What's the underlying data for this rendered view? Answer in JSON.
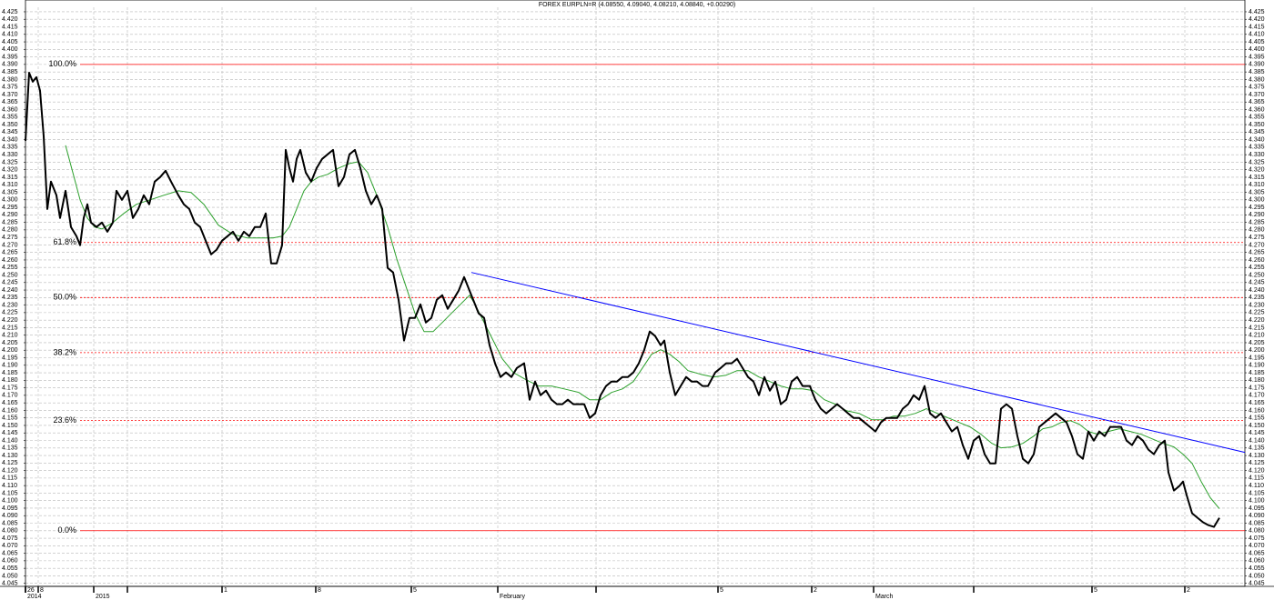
{
  "chart_data": {
    "type": "line",
    "title": "FOREX EURPLN=R (4.08550, 4.09040, 4.08210, 4.08840, +0.00290)",
    "xlim": [
      0,
      1340
    ],
    "ylim": [
      4.043,
      4.428
    ],
    "yticks": [
      4.045,
      {
        "value": 4.05,
        "label": "4.050"
      },
      4.055,
      {
        "value": 4.06,
        "label": "4.060"
      },
      4.065,
      {
        "value": 4.07,
        "label": "4.070"
      },
      4.075,
      {
        "value": 4.08,
        "label": "4.080"
      },
      4.085,
      {
        "value": 4.09,
        "label": "4.090"
      },
      4.095,
      {
        "value": 4.1,
        "label": "4.100"
      },
      4.105,
      {
        "value": 4.11,
        "label": "4.110"
      },
      4.115,
      {
        "value": 4.12,
        "label": "4.120"
      },
      4.125,
      {
        "value": 4.13,
        "label": "4.130"
      },
      4.135,
      {
        "value": 4.14,
        "label": "4.140"
      },
      4.145,
      {
        "value": 4.15,
        "label": "4.150"
      },
      4.155,
      {
        "value": 4.16,
        "label": "4.160"
      },
      4.165,
      {
        "value": 4.17,
        "label": "4.170"
      },
      4.175,
      {
        "value": 4.18,
        "label": "4.180"
      },
      4.185,
      {
        "value": 4.19,
        "label": "4.190"
      },
      4.195,
      {
        "value": 4.2,
        "label": "4.200"
      },
      4.205,
      {
        "value": 4.21,
        "label": "4.210"
      },
      4.215,
      {
        "value": 4.22,
        "label": "4.220"
      },
      4.225,
      {
        "value": 4.23,
        "label": "4.230"
      },
      4.235,
      {
        "value": 4.24,
        "label": "4.240"
      },
      4.245,
      {
        "value": 4.25,
        "label": "4.250"
      },
      4.255,
      {
        "value": 4.26,
        "label": "4.260"
      },
      4.265,
      {
        "value": 4.27,
        "label": "4.270"
      },
      4.275,
      {
        "value": 4.28,
        "label": "4.280"
      },
      4.285,
      {
        "value": 4.29,
        "label": "4.290"
      },
      4.295,
      {
        "value": 4.3,
        "label": "4.300"
      },
      4.305,
      {
        "value": 4.31,
        "label": "4.310"
      },
      4.315,
      {
        "value": 4.32,
        "label": "4.320"
      },
      4.325,
      {
        "value": 4.33,
        "label": "4.330"
      },
      4.335,
      {
        "value": 4.34,
        "label": "4.340"
      },
      4.345,
      {
        "value": 4.35,
        "label": "4.350"
      },
      4.355,
      {
        "value": 4.36,
        "label": "4.360"
      },
      4.365,
      {
        "value": 4.37,
        "label": "4.370"
      },
      4.375,
      {
        "value": 4.38,
        "label": "4.380"
      },
      4.385,
      {
        "value": 4.39,
        "label": "4.390"
      },
      4.395,
      {
        "value": 4.4,
        "label": "4.400"
      },
      4.405,
      {
        "value": 4.41,
        "label": "4.410"
      },
      4.415,
      {
        "value": 4.42,
        "label": "4.420"
      },
      4.425
    ],
    "xticks": [
      {
        "value": 0,
        "label": "26"
      },
      {
        "value": 14,
        "label": "8"
      },
      {
        "value": 216,
        "label": "1"
      },
      {
        "value": 319,
        "label": "8"
      },
      {
        "value": 424,
        "label": "5"
      },
      {
        "value": 761,
        "label": "5"
      },
      {
        "value": 864,
        "label": "2"
      },
      {
        "value": 1172,
        "label": "5"
      },
      {
        "value": 1274,
        "label": "2"
      }
    ],
    "xticks_secondary": [
      {
        "value": 0,
        "label": "2014"
      },
      {
        "value": 75,
        "label": "2015"
      },
      {
        "value": 519,
        "label": "February"
      },
      {
        "value": 932,
        "label": "March"
      }
    ],
    "xticks_minor": [
      112,
      627,
      1042
    ],
    "grid": true,
    "series": [
      {
        "color": "#000000",
        "x": [
          0,
          4,
          8,
          12,
          16,
          20,
          24,
          28,
          34,
          38,
          44,
          50,
          56,
          60,
          64,
          68,
          72,
          78,
          84,
          90,
          96,
          100,
          106,
          112,
          118,
          124,
          130,
          136,
          142,
          148,
          154,
          160,
          168,
          174,
          180,
          186,
          192,
          198,
          204,
          210,
          216,
          222,
          228,
          234,
          240,
          246,
          252,
          258,
          264,
          270,
          276,
          282,
          286,
          290,
          294,
          298,
          302,
          308,
          314,
          320,
          326,
          332,
          338,
          344,
          350,
          356,
          362,
          368,
          374,
          380,
          386,
          392,
          398,
          404,
          410,
          416,
          422,
          428,
          434,
          440,
          446,
          452,
          458,
          464,
          470,
          476,
          482,
          488,
          492,
          498,
          504,
          510,
          516,
          522,
          528,
          534,
          540,
          548,
          554,
          560,
          566,
          572,
          578,
          584,
          590,
          596,
          602,
          608,
          614,
          620,
          626,
          632,
          638,
          644,
          650,
          656,
          662,
          668,
          674,
          680,
          686,
          692,
          698,
          702,
          708,
          714,
          720,
          726,
          732,
          738,
          744,
          750,
          758,
          764,
          770,
          776,
          782,
          788,
          794,
          800,
          806,
          812,
          818,
          824,
          830,
          836,
          842,
          848,
          854,
          862,
          868,
          874,
          880,
          886,
          892,
          898,
          904,
          910,
          916,
          922,
          928,
          934,
          940,
          946,
          952,
          958,
          964,
          970,
          976,
          982,
          988,
          994,
          1000,
          1006,
          1012,
          1018,
          1024,
          1030,
          1036,
          1042,
          1048,
          1054,
          1060,
          1066,
          1072,
          1078,
          1084,
          1090,
          1096,
          1102,
          1108,
          1114,
          1120,
          1126,
          1132,
          1138,
          1144,
          1150,
          1156,
          1162,
          1168,
          1174,
          1180,
          1186,
          1192,
          1198,
          1204,
          1210,
          1216,
          1222,
          1228,
          1234,
          1240,
          1246,
          1252,
          1256,
          1262,
          1268,
          1272,
          1276,
          1282,
          1288,
          1294,
          1300,
          1306,
          1312
        ],
        "values": [
          4.3392,
          4.3845,
          4.3785,
          4.3815,
          4.3725,
          4.3423,
          4.2939,
          4.3121,
          4.303,
          4.2879,
          4.306,
          4.2819,
          4.2758,
          4.2698,
          4.2879,
          4.297,
          4.2849,
          4.2819,
          4.2849,
          4.2788,
          4.2849,
          4.306,
          4.3,
          4.306,
          4.2879,
          4.2939,
          4.303,
          4.297,
          4.3121,
          4.3151,
          4.3193,
          4.3121,
          4.303,
          4.297,
          4.2939,
          4.2849,
          4.2819,
          4.2728,
          4.2637,
          4.2668,
          4.2728,
          4.2758,
          4.2788,
          4.2728,
          4.2788,
          4.2758,
          4.2819,
          4.2819,
          4.2909,
          4.2577,
          4.2577,
          4.2698,
          4.3332,
          4.3211,
          4.3121,
          4.3272,
          4.3332,
          4.3181,
          4.3121,
          4.3211,
          4.3272,
          4.3302,
          4.3332,
          4.309,
          4.3151,
          4.3302,
          4.3332,
          4.3211,
          4.306,
          4.297,
          4.303,
          4.2939,
          4.2547,
          4.2517,
          4.2335,
          4.2064,
          4.2215,
          4.2215,
          4.2305,
          4.2184,
          4.2215,
          4.2335,
          4.2366,
          4.2275,
          4.2335,
          4.2396,
          4.2486,
          4.2396,
          4.2335,
          4.2245,
          4.2215,
          4.2033,
          4.1913,
          4.1822,
          4.1852,
          4.1822,
          4.1882,
          4.1913,
          4.1671,
          4.1792,
          4.1701,
          4.1731,
          4.1671,
          4.1641,
          4.1641,
          4.1671,
          4.1641,
          4.1641,
          4.1641,
          4.155,
          4.158,
          4.1701,
          4.1762,
          4.1792,
          4.1792,
          4.1822,
          4.1822,
          4.1852,
          4.1913,
          4.2003,
          4.2124,
          4.2094,
          4.2033,
          4.2064,
          4.1852,
          4.1701,
          4.1762,
          4.1822,
          4.1792,
          4.1792,
          4.1762,
          4.1762,
          4.1852,
          4.1882,
          4.1913,
          4.1913,
          4.1943,
          4.1882,
          4.1822,
          4.1792,
          4.1701,
          4.1822,
          4.1731,
          4.1792,
          4.1641,
          4.1671,
          4.1792,
          4.1822,
          4.1762,
          4.1762,
          4.1671,
          4.1611,
          4.158,
          4.1611,
          4.1641,
          4.1611,
          4.158,
          4.155,
          4.155,
          4.152,
          4.149,
          4.146,
          4.152,
          4.155,
          4.155,
          4.155,
          4.1611,
          4.1641,
          4.1701,
          4.1671,
          4.1762,
          4.158,
          4.155,
          4.158,
          4.152,
          4.146,
          4.149,
          4.1369,
          4.1278,
          4.1399,
          4.1429,
          4.1309,
          4.1248,
          4.1248,
          4.1611,
          4.1641,
          4.1611,
          4.1429,
          4.1278,
          4.1248,
          4.1309,
          4.149,
          4.152,
          4.155,
          4.158,
          4.155,
          4.152,
          4.1429,
          4.1309,
          4.1278,
          4.146,
          4.1399,
          4.146,
          4.1429,
          4.149,
          4.149,
          4.149,
          4.1399,
          4.1369,
          4.1429,
          4.1399,
          4.1339,
          4.1309,
          4.1369,
          4.1399,
          4.1188,
          4.1067,
          4.1097,
          4.1127,
          4.1037,
          4.0916,
          4.0886,
          4.0856,
          4.0837,
          4.0825,
          4.0886
        ]
      },
      {
        "color": "#2ca02c",
        "x": [
          44,
          52,
          60,
          68,
          76,
          84,
          96,
          108,
          122,
          137,
          152,
          168,
          182,
          196,
          212,
          228,
          244,
          260,
          272,
          282,
          290,
          298,
          306,
          314,
          322,
          332,
          344,
          356,
          366,
          376,
          386,
          398,
          408,
          418,
          428,
          438,
          448,
          458,
          468,
          478,
          488,
          494,
          504,
          514,
          524,
          536,
          550,
          564,
          578,
          592,
          608,
          620,
          632,
          644,
          656,
          668,
          678,
          688,
          698,
          708,
          718,
          728,
          742,
          756,
          770,
          782,
          794,
          806,
          818,
          830,
          842,
          854,
          866,
          878,
          890,
          902,
          916,
          930,
          942,
          954,
          966,
          978,
          990,
          1002,
          1014,
          1026,
          1038,
          1050,
          1062,
          1072,
          1084,
          1096,
          1108,
          1118,
          1128,
          1138,
          1148,
          1158,
          1168,
          1178,
          1190,
          1202,
          1214,
          1226,
          1238,
          1250,
          1262,
          1272,
          1282,
          1292,
          1302,
          1312
        ],
        "values": [
          4.3362,
          4.3181,
          4.3,
          4.2879,
          4.2819,
          4.2806,
          4.2849,
          4.2909,
          4.297,
          4.3,
          4.303,
          4.306,
          4.3048,
          4.297,
          4.2831,
          4.277,
          4.2746,
          4.2746,
          4.2746,
          4.2758,
          4.2819,
          4.2939,
          4.306,
          4.3121,
          4.3151,
          4.3169,
          4.3211,
          4.3241,
          4.3253,
          4.3181,
          4.303,
          4.2819,
          4.2607,
          4.2426,
          4.2245,
          4.2124,
          4.2124,
          4.2184,
          4.2245,
          4.2305,
          4.2366,
          4.2305,
          4.2184,
          4.2064,
          4.1943,
          4.1852,
          4.1804,
          4.1762,
          4.1762,
          4.1743,
          4.1719,
          4.1671,
          4.1671,
          4.1719,
          4.1743,
          4.1792,
          4.1882,
          4.1973,
          4.2003,
          4.1973,
          4.1925,
          4.1864,
          4.184,
          4.1822,
          4.1834,
          4.1864,
          4.1864,
          4.1822,
          4.1792,
          4.1762,
          4.1743,
          4.1743,
          4.1731,
          4.1671,
          4.1641,
          4.1598,
          4.158,
          4.1538,
          4.1538,
          4.1562,
          4.1562,
          4.158,
          4.1611,
          4.158,
          4.155,
          4.152,
          4.149,
          4.1441,
          4.1381,
          4.1351,
          4.1357,
          4.1381,
          4.1429,
          4.1478,
          4.149,
          4.152,
          4.1532,
          4.1508,
          4.146,
          4.1441,
          4.146,
          4.1478,
          4.146,
          4.1441,
          4.1411,
          4.1381,
          4.1357,
          4.1309,
          4.1248,
          4.1127,
          4.1019,
          4.0946
        ]
      }
    ],
    "trendline": {
      "color": "#0000ff",
      "x": [
        490,
        1340
      ],
      "values": [
        4.2517,
        4.1321
      ]
    },
    "fib_color": "#ff0000",
    "fib_levels": [
      {
        "level": "100.0%",
        "price": 4.39,
        "line_style": "solid"
      },
      {
        "level": "61.8%",
        "price": 4.2716,
        "line_style": "dotted"
      },
      {
        "level": "50.0%",
        "price": 4.235,
        "line_style": "dotted"
      },
      {
        "level": "38.2%",
        "price": 4.1984,
        "line_style": "dotted"
      },
      {
        "level": "23.6%",
        "price": 4.1533,
        "line_style": "dotted"
      },
      {
        "level": "0.0%",
        "price": 4.08,
        "line_style": "solid"
      }
    ]
  }
}
